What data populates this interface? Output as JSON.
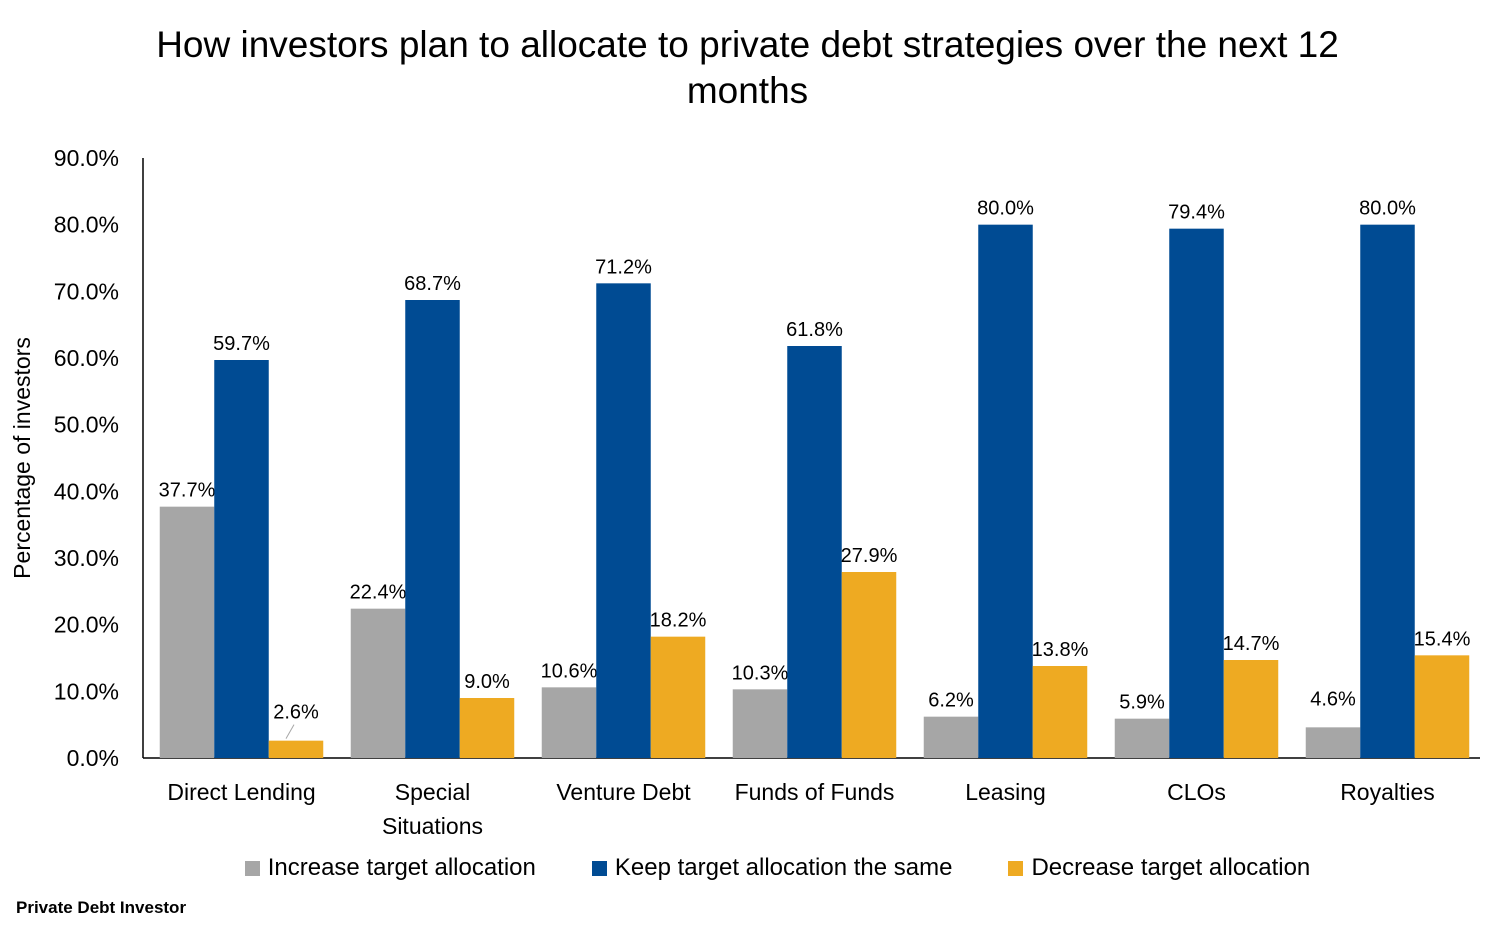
{
  "chart_data": {
    "type": "bar",
    "title": "How investors plan to allocate to private debt strategies over the next 12 months",
    "ylabel": "Percentage of investors",
    "xlabel": "",
    "ylim": [
      0,
      90
    ],
    "yticks": [
      "0.0%",
      "10.0%",
      "20.0%",
      "30.0%",
      "40.0%",
      "50.0%",
      "60.0%",
      "70.0%",
      "80.0%",
      "90.0%"
    ],
    "categories": [
      [
        "Direct Lending"
      ],
      [
        "Special",
        "Situations"
      ],
      [
        "Venture Debt"
      ],
      [
        "Funds of Funds"
      ],
      [
        "Leasing"
      ],
      [
        "CLOs"
      ],
      [
        "Royalties"
      ]
    ],
    "series": [
      {
        "name": "Increase target allocation",
        "color": "#a6a6a6",
        "values": [
          37.7,
          22.4,
          10.6,
          10.3,
          6.2,
          5.9,
          4.6
        ],
        "labels": [
          "37.7%",
          "22.4%",
          "10.6%",
          "10.3%",
          "6.2%",
          "5.9%",
          "4.6%"
        ]
      },
      {
        "name": "Keep target allocation the same",
        "color": "#004b93",
        "values": [
          59.7,
          68.7,
          71.2,
          61.8,
          80.0,
          79.4,
          80.0
        ],
        "labels": [
          "59.7%",
          "68.7%",
          "71.2%",
          "61.8%",
          "80.0%",
          "79.4%",
          "80.0%"
        ]
      },
      {
        "name": "Decrease target allocation",
        "color": "#eeaa22",
        "values": [
          2.6,
          9.0,
          18.2,
          27.9,
          13.8,
          14.7,
          15.4
        ],
        "labels": [
          "2.6%",
          "9.0%",
          "18.2%",
          "27.9%",
          "13.8%",
          "14.7%",
          "15.4%"
        ]
      }
    ],
    "grid": false,
    "legend": "bottom"
  },
  "footer": "Private Debt Investor"
}
